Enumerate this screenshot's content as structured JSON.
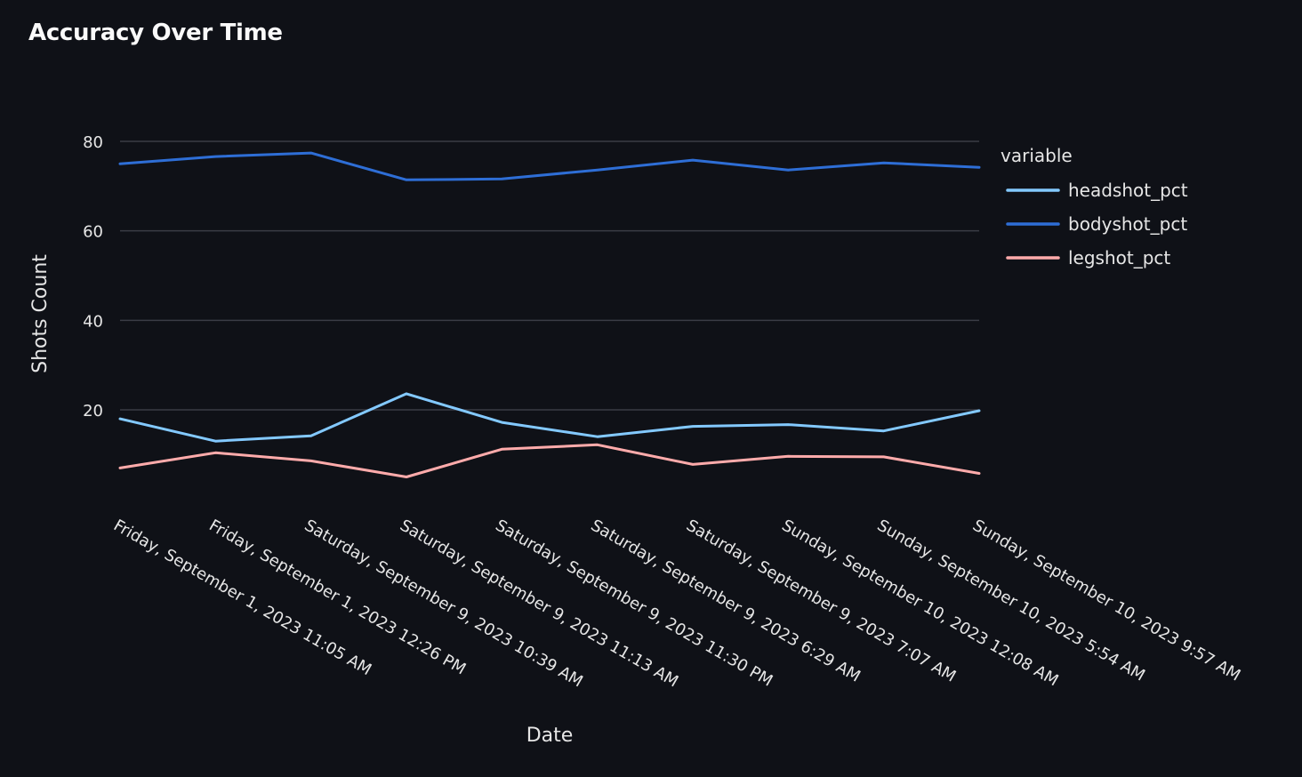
{
  "title": "Accuracy Over Time",
  "chart_data": {
    "type": "line",
    "title": "Accuracy Over Time",
    "xlabel": "Date",
    "ylabel": "Shots Count",
    "yticks": [
      20,
      40,
      60,
      80
    ],
    "ylim": [
      0,
      90
    ],
    "grid": true,
    "legend_position": "right",
    "legend_title": "variable",
    "categories": [
      "Friday, September 1, 2023 11:05 AM",
      "Friday, September 1, 2023 12:26 PM",
      "Saturday, September 9, 2023 10:39 AM",
      "Saturday, September 9, 2023 11:13 AM",
      "Saturday, September 9, 2023 11:30 PM",
      "Saturday, September 9, 2023 6:29 AM",
      "Saturday, September 9, 2023 7:07 AM",
      "Sunday, September 10, 2023 12:08 AM",
      "Sunday, September 10, 2023 5:54 AM",
      "Sunday, September 10, 2023 9:57 AM"
    ],
    "series": [
      {
        "name": "headshot_pct",
        "color": "#83c9ff",
        "values": [
          18,
          13,
          14.2,
          23.6,
          17.2,
          14,
          16.3,
          16.7,
          15.3,
          19.8
        ]
      },
      {
        "name": "bodyshot_pct",
        "color": "#2e6ed6",
        "values": [
          75,
          76.6,
          77.4,
          71.4,
          71.6,
          73.6,
          75.8,
          73.6,
          75.2,
          74.2
        ]
      },
      {
        "name": "legshot_pct",
        "color": "#ffabab",
        "values": [
          7,
          10.4,
          8.6,
          5,
          11.2,
          12.2,
          7.8,
          9.6,
          9.5,
          5.8
        ]
      }
    ]
  }
}
